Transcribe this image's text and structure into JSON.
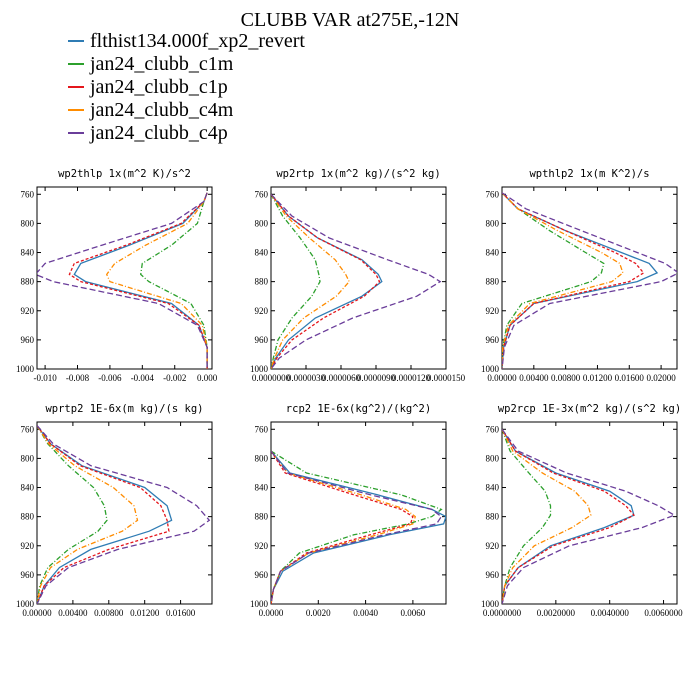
{
  "title": "CLUBB VAR at275E,-12N",
  "legend": [
    {
      "label": "flthist134.000f_xp2_revert",
      "color": "#2f7cb4",
      "dash": "solid"
    },
    {
      "label": "jan24_clubb_c1m",
      "color": "#2ca02c",
      "dash": "dashdot"
    },
    {
      "label": "jan24_clubb_c1p",
      "color": "#e4161c",
      "dash": "dash"
    },
    {
      "label": "jan24_clubb_c4m",
      "color": "#ff8c00",
      "dash": "dashdot"
    },
    {
      "label": "jan24_clubb_c4p",
      "color": "#6a3d9a",
      "dash": "longdash"
    }
  ],
  "chart_data": [
    {
      "type": "line",
      "title": "wp2thlp   1x(m^2 K)/s^2",
      "ylim": [
        1000,
        750
      ],
      "yticks": [
        760,
        800,
        840,
        880,
        920,
        960,
        1000
      ],
      "xlim": [
        -0.0105,
        0.0003
      ],
      "xticks": [
        -0.01,
        -0.008,
        -0.006,
        -0.004,
        -0.002,
        0.0
      ],
      "xtick_labels": [
        "-0.010",
        "-0.008",
        "-0.006",
        "-0.004",
        "-0.002",
        "0.000"
      ],
      "y": [
        758,
        770,
        800,
        830,
        855,
        870,
        880,
        910,
        940,
        970,
        1000
      ],
      "series": [
        {
          "values": [
            0.0,
            -0.0002,
            -0.0015,
            -0.0048,
            -0.0078,
            -0.0082,
            -0.0075,
            -0.0022,
            -0.0005,
            0.0,
            0.0
          ]
        },
        {
          "values": [
            0.0,
            -0.0002,
            -0.0006,
            -0.0022,
            -0.004,
            -0.0041,
            -0.0036,
            -0.001,
            -0.0002,
            0.0,
            0.0
          ]
        },
        {
          "values": [
            0.0,
            -0.0002,
            -0.0016,
            -0.005,
            -0.0082,
            -0.0085,
            -0.0078,
            -0.0024,
            -0.0005,
            0.0,
            0.0
          ]
        },
        {
          "values": [
            0.0,
            -0.0002,
            -0.0012,
            -0.0038,
            -0.0057,
            -0.0062,
            -0.006,
            -0.0016,
            -0.0003,
            0.0,
            0.0
          ]
        },
        {
          "values": [
            0.0,
            -0.0002,
            -0.0022,
            -0.0065,
            -0.01,
            -0.0106,
            -0.0095,
            -0.003,
            -0.0006,
            0.0,
            0.0
          ]
        }
      ]
    },
    {
      "type": "line",
      "title": "wp2rtp  1x(m^2 kg)/(s^2 kg)",
      "ylim": [
        1000,
        750
      ],
      "yticks": [
        760,
        800,
        840,
        880,
        920,
        960,
        1000
      ],
      "xlim": [
        0,
        1.5e-05
      ],
      "xticks": [
        0,
        3e-06,
        6e-06,
        9e-06,
        1.2e-05,
        1.5e-05
      ],
      "xtick_labels": [
        "0.0000000",
        "0.0000030",
        "0.0000060",
        "0.0000090",
        "0.0000120",
        "0.0000150"
      ],
      "y": [
        760,
        790,
        820,
        850,
        870,
        880,
        900,
        930,
        960,
        985,
        1000
      ],
      "series": [
        {
          "values": [
            0.0,
            1.5e-06,
            4e-06,
            7.8e-06,
            9.2e-06,
            9.5e-06,
            7.8e-06,
            3.8e-06,
            1.5e-06,
            4e-07,
            0.0
          ]
        },
        {
          "values": [
            0.0,
            1e-06,
            2.5e-06,
            3.8e-06,
            4.1e-06,
            4.2e-06,
            3.5e-06,
            1.8e-06,
            6e-07,
            2e-07,
            0.0
          ]
        },
        {
          "values": [
            0.0,
            1.5e-06,
            4e-06,
            7.7e-06,
            9e-06,
            9.3e-06,
            8e-06,
            4.5e-06,
            1.8e-06,
            5e-07,
            0.0
          ]
        },
        {
          "values": [
            0.0,
            1.3e-06,
            3.3e-06,
            5.5e-06,
            6.4e-06,
            6.7e-06,
            5.6e-06,
            2.8e-06,
            1e-06,
            3e-07,
            0.0
          ]
        },
        {
          "values": [
            0.0,
            1.8e-06,
            5e-06,
            1e-05,
            1.35e-05,
            1.45e-05,
            1.25e-05,
            7e-06,
            3e-06,
            7e-07,
            0.0
          ]
        }
      ]
    },
    {
      "type": "line",
      "title": "wpthlp2  1x(m K^2)/s",
      "ylim": [
        1000,
        750
      ],
      "yticks": [
        760,
        800,
        840,
        880,
        920,
        960,
        1000
      ],
      "xlim": [
        0,
        0.022
      ],
      "xticks": [
        0,
        0.004,
        0.008,
        0.012,
        0.016,
        0.02
      ],
      "xtick_labels": [
        "0.00000",
        "0.00400",
        "0.00800",
        "0.01200",
        "0.01600",
        "0.02000"
      ],
      "y": [
        758,
        780,
        810,
        840,
        855,
        868,
        880,
        910,
        940,
        970,
        1000
      ],
      "series": [
        {
          "values": [
            0.0,
            0.002,
            0.008,
            0.015,
            0.0185,
            0.0195,
            0.017,
            0.004,
            0.001,
            0.0002,
            0.0
          ]
        },
        {
          "values": [
            0.0,
            0.002,
            0.006,
            0.0105,
            0.0128,
            0.0125,
            0.0112,
            0.0025,
            0.0006,
            0.0001,
            0.0
          ]
        },
        {
          "values": [
            0.0,
            0.002,
            0.008,
            0.0142,
            0.0168,
            0.0178,
            0.016,
            0.004,
            0.001,
            0.0002,
            0.0
          ]
        },
        {
          "values": [
            0.0,
            0.002,
            0.007,
            0.0125,
            0.0148,
            0.0152,
            0.0138,
            0.0035,
            0.0008,
            0.0001,
            0.0
          ]
        },
        {
          "values": [
            0.0,
            0.003,
            0.01,
            0.017,
            0.0205,
            0.0222,
            0.02,
            0.006,
            0.0015,
            0.0003,
            0.0
          ]
        }
      ]
    },
    {
      "type": "line",
      "title": "wprtp2  1E-6x(m kg)/(s kg)",
      "ylim": [
        1000,
        750
      ],
      "yticks": [
        760,
        800,
        840,
        880,
        920,
        960,
        1000
      ],
      "xlim": [
        0,
        0.0195
      ],
      "xticks": [
        0,
        0.004,
        0.008,
        0.012,
        0.016
      ],
      "xtick_labels": [
        "0.00000",
        "0.00400",
        "0.00800",
        "0.01200",
        "0.01600"
      ],
      "y": [
        755,
        780,
        810,
        840,
        865,
        885,
        900,
        925,
        950,
        975,
        1000
      ],
      "series": [
        {
          "values": [
            0.0,
            0.0015,
            0.005,
            0.012,
            0.0145,
            0.015,
            0.0125,
            0.006,
            0.0025,
            0.0008,
            0.0
          ]
        },
        {
          "values": [
            0.0,
            0.0012,
            0.0035,
            0.0063,
            0.0075,
            0.0078,
            0.0068,
            0.0035,
            0.0012,
            0.0003,
            0.0
          ]
        },
        {
          "values": [
            0.0,
            0.0015,
            0.0048,
            0.0115,
            0.0138,
            0.0145,
            0.0147,
            0.008,
            0.003,
            0.0008,
            0.0
          ]
        },
        {
          "values": [
            0.0,
            0.0013,
            0.0042,
            0.0085,
            0.0108,
            0.0112,
            0.0095,
            0.0045,
            0.0015,
            0.0004,
            0.0
          ]
        },
        {
          "values": [
            0.0,
            0.0018,
            0.006,
            0.0145,
            0.0178,
            0.0192,
            0.0175,
            0.009,
            0.0035,
            0.001,
            0.0
          ]
        }
      ]
    },
    {
      "type": "line",
      "title": "rcp2  1E-6x(kg^2)/(kg^2)",
      "ylim": [
        1000,
        750
      ],
      "yticks": [
        760,
        800,
        840,
        880,
        920,
        960,
        1000
      ],
      "xlim": [
        0,
        0.0074
      ],
      "xticks": [
        0,
        0.002,
        0.004,
        0.006
      ],
      "xtick_labels": [
        "0.0000",
        "0.0020",
        "0.0040",
        "0.0060"
      ],
      "y": [
        790,
        820,
        850,
        870,
        880,
        890,
        905,
        930,
        955,
        980,
        1000
      ],
      "series": [
        {
          "values": [
            0.0,
            0.0008,
            0.0045,
            0.0068,
            0.0074,
            0.0073,
            0.005,
            0.0018,
            0.0005,
            0.0001,
            0.0
          ]
        },
        {
          "values": [
            0.0,
            0.0015,
            0.0055,
            0.0072,
            0.0068,
            0.0058,
            0.0035,
            0.0012,
            0.0004,
            0.0001,
            0.0
          ]
        },
        {
          "values": [
            0.0,
            0.0006,
            0.0035,
            0.0055,
            0.006,
            0.0059,
            0.0042,
            0.0015,
            0.0004,
            0.0001,
            0.0
          ]
        },
        {
          "values": [
            0.0,
            0.0007,
            0.0038,
            0.0057,
            0.0061,
            0.006,
            0.0045,
            0.0016,
            0.0004,
            0.0001,
            0.0
          ]
        },
        {
          "values": [
            0.0,
            0.0007,
            0.0042,
            0.0068,
            0.0072,
            0.007,
            0.0048,
            0.0016,
            0.0004,
            0.0001,
            0.0
          ]
        }
      ]
    },
    {
      "type": "line",
      "title": "wp2rcp  1E-3x(m^2 kg)/(s^2 kg)",
      "ylim": [
        1000,
        750
      ],
      "yticks": [
        760,
        800,
        840,
        880,
        920,
        960,
        1000
      ],
      "xlim": [
        0,
        0.0065
      ],
      "xticks": [
        0,
        0.002,
        0.004,
        0.006
      ],
      "xtick_labels": [
        "0.0000000",
        "0.0020000",
        "0.0040000",
        "0.0060000"
      ],
      "y": [
        760,
        790,
        820,
        845,
        865,
        878,
        895,
        920,
        950,
        975,
        1000
      ],
      "series": [
        {
          "values": [
            0.0,
            0.0005,
            0.002,
            0.004,
            0.0048,
            0.0049,
            0.0038,
            0.0018,
            0.0006,
            0.0001,
            0.0
          ]
        },
        {
          "values": [
            0.0,
            0.0003,
            0.001,
            0.0016,
            0.0018,
            0.0018,
            0.0015,
            0.0008,
            0.0003,
            0.0001,
            0.0
          ]
        },
        {
          "values": [
            0.0,
            0.0005,
            0.0019,
            0.0038,
            0.0046,
            0.0049,
            0.004,
            0.0019,
            0.0006,
            0.0001,
            0.0
          ]
        },
        {
          "values": [
            0.0,
            0.0004,
            0.0015,
            0.0027,
            0.0032,
            0.0033,
            0.0026,
            0.0012,
            0.0004,
            0.0001,
            0.0
          ]
        },
        {
          "values": [
            0.0,
            0.0006,
            0.0024,
            0.0046,
            0.0058,
            0.0064,
            0.0052,
            0.0025,
            0.0008,
            0.0002,
            0.0
          ]
        }
      ]
    }
  ]
}
